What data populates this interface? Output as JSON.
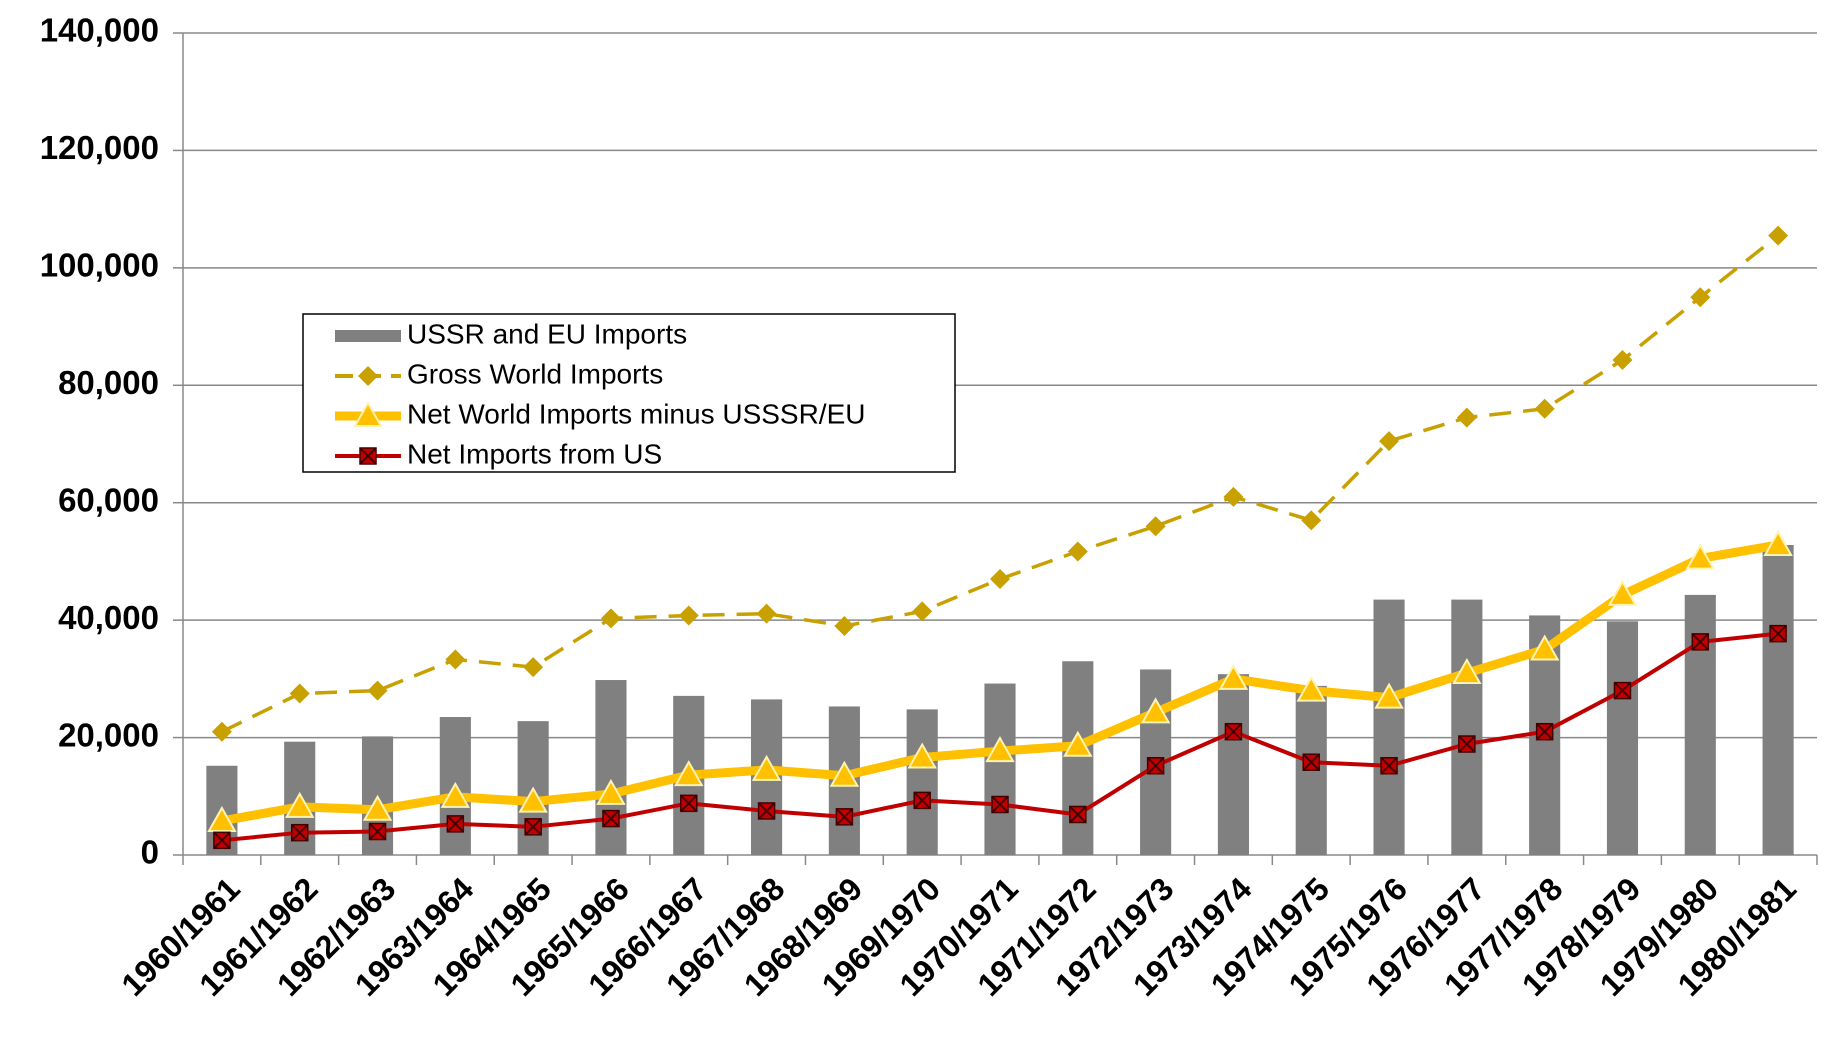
{
  "chart_data": {
    "type": "bar_line",
    "categories": [
      "1960/1961",
      "1961/1962",
      "1962/1963",
      "1963/1964",
      "1964/1965",
      "1965/1966",
      "1966/1967",
      "1967/1968",
      "1968/1969",
      "1969/1970",
      "1970/1971",
      "1971/1972",
      "1972/1973",
      "1973/1974",
      "1974/1975",
      "1975/1976",
      "1976/1977",
      "1977/1978",
      "1978/1979",
      "1979/1980",
      "1980/1981"
    ],
    "series": [
      {
        "name": "USSR and EU Imports",
        "type": "bar",
        "color": "#808080",
        "values": [
          15200,
          19300,
          20200,
          23500,
          22800,
          29800,
          27100,
          26500,
          25300,
          24800,
          29200,
          33000,
          31600,
          30800,
          28800,
          43500,
          43500,
          40800,
          39800,
          44300,
          52800
        ]
      },
      {
        "name": "Gross World Imports",
        "type": "line",
        "dashed": true,
        "marker": "diamond",
        "color": "#c8a000",
        "values": [
          21000,
          27500,
          28000,
          33300,
          32000,
          40300,
          40800,
          41100,
          39000,
          41500,
          47000,
          51700,
          56000,
          61000,
          57000,
          70500,
          74500,
          76000,
          84300,
          95000,
          105500
        ]
      },
      {
        "name": "Net World Imports minus USSSR/EU",
        "type": "line",
        "marker": "triangle",
        "color": "#ffc000",
        "values": [
          5800,
          8200,
          7700,
          9900,
          9100,
          10400,
          13600,
          14500,
          13500,
          16600,
          17700,
          18600,
          24300,
          30000,
          28000,
          26800,
          31000,
          35000,
          44300,
          50500,
          52800
        ]
      },
      {
        "name": "Net Imports from US",
        "type": "line",
        "marker": "xsquare",
        "color": "#c00000",
        "values": [
          2500,
          3800,
          4000,
          5300,
          4800,
          6200,
          8800,
          7500,
          6500,
          9300,
          8600,
          6900,
          15200,
          21000,
          15800,
          15200,
          18900,
          21000,
          28000,
          36300,
          37700
        ]
      }
    ],
    "ylim": [
      0,
      140000
    ],
    "yticks": [
      0,
      {
        "value": 20000,
        "label": "20,000"
      },
      {
        "value": 40000,
        "label": "40,000"
      },
      {
        "value": 60000,
        "label": "60,000"
      },
      {
        "value": 80000,
        "label": "80,000"
      },
      {
        "value": 100000,
        "label": "100,000"
      },
      {
        "value": 120000,
        "label": "120,000"
      },
      {
        "value": 140000,
        "label": "140,000"
      }
    ],
    "grid": true,
    "legend": "upper left"
  }
}
